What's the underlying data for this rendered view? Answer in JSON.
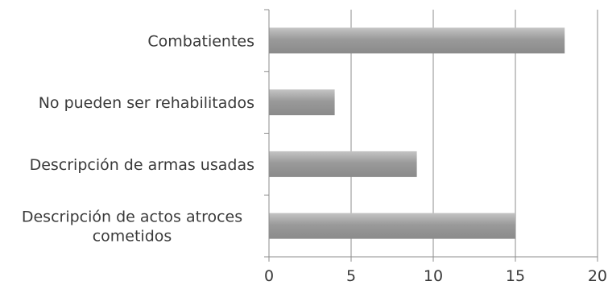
{
  "chart_data": {
    "type": "bar",
    "orientation": "horizontal",
    "categories": [
      "Combatientes",
      "No pueden ser rehabilitados",
      "Descripción de armas usadas",
      "Descripción de actos atroces cometidos"
    ],
    "category_label_lines": [
      [
        "Combatientes"
      ],
      [
        "No pueden ser rehabilitados"
      ],
      [
        "Descripción de armas usadas"
      ],
      [
        "Descripción de actos atroces",
        "cometidos"
      ]
    ],
    "values": [
      18,
      4,
      9,
      15
    ],
    "xlim": [
      0,
      20
    ],
    "xticks": [
      0,
      5,
      10,
      15,
      20
    ],
    "grid": true,
    "legend": "none",
    "colors": {
      "bar_top": "#c4c4c4",
      "bar_mid": "#9a9a9a",
      "bar_bottom": "#8a8a8a",
      "grid": "#8c8c8c",
      "axis": "#8c8c8c",
      "text": "#3a3a3a"
    }
  }
}
